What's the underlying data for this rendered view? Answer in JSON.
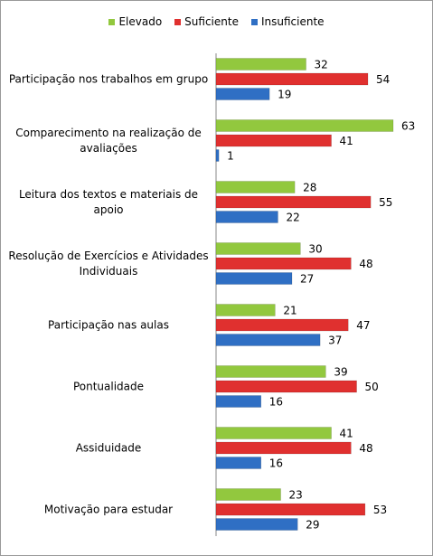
{
  "chart_data": {
    "type": "bar",
    "orientation": "horizontal",
    "categories": [
      "Participação nos trabalhos em grupo",
      "Comparecimento na realização de avaliações",
      "Leitura dos textos e materiais de apoio",
      "Resolução de Exercícios e Atividades Individuais",
      "Participação nas aulas",
      "Pontualidade",
      "Assiduidade",
      "Motivação para estudar"
    ],
    "series": [
      {
        "name": "Elevado",
        "color": "#92c83e",
        "values": [
          32,
          63,
          28,
          30,
          21,
          39,
          41,
          23
        ]
      },
      {
        "name": "Suficiente",
        "color": "#e0302f",
        "values": [
          54,
          41,
          55,
          48,
          47,
          50,
          48,
          53
        ]
      },
      {
        "name": "Insuficiente",
        "color": "#2f6fc4",
        "values": [
          19,
          1,
          22,
          27,
          37,
          16,
          16,
          29
        ]
      }
    ],
    "legend": "top"
  }
}
